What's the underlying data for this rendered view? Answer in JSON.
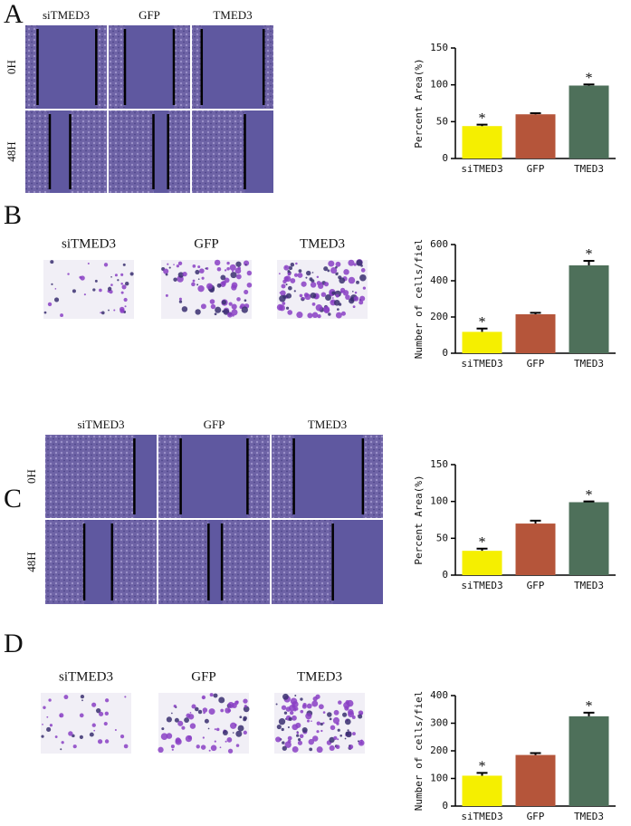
{
  "panels": [
    {
      "letter": "A",
      "columns": [
        "siTMED3",
        "GFP",
        "TMED3"
      ],
      "rows": [
        "0H",
        "48H"
      ]
    },
    {
      "letter": "B",
      "columns": [
        "siTMED3",
        "GFP",
        "TMED3"
      ]
    },
    {
      "letter": "C",
      "columns": [
        "siTMED3",
        "GFP",
        "TMED3"
      ],
      "rows": [
        "0H",
        "48H"
      ]
    },
    {
      "letter": "D",
      "columns": [
        "siTMED3",
        "GFP",
        "TMED3"
      ]
    }
  ],
  "chart_data": [
    {
      "type": "bar",
      "ylabel": "Percent Area(%)",
      "categories": [
        "siTMED3",
        "GFP",
        "TMED3"
      ],
      "values": [
        44,
        60,
        99
      ],
      "errors": [
        2,
        1.5,
        1.5
      ],
      "colors": [
        "#f5ef00",
        "#b5553a",
        "#4e705a"
      ],
      "significance": [
        "*",
        null,
        "*"
      ],
      "ylim": [
        0,
        150
      ],
      "yticks": [
        0,
        50,
        100,
        150
      ]
    },
    {
      "type": "bar",
      "ylabel": "Number of cells/fiel",
      "categories": [
        "siTMED3",
        "GFP",
        "TMED3"
      ],
      "values": [
        118,
        215,
        485
      ],
      "errors": [
        18,
        8,
        25
      ],
      "colors": [
        "#f5ef00",
        "#b5553a",
        "#4e705a"
      ],
      "significance": [
        "*",
        null,
        "*"
      ],
      "ylim": [
        0,
        600
      ],
      "yticks": [
        0,
        200,
        400,
        600
      ]
    },
    {
      "type": "bar",
      "ylabel": "Percent Area(%)",
      "categories": [
        "siTMED3",
        "GFP",
        "TMED3"
      ],
      "values": [
        33,
        70,
        99
      ],
      "errors": [
        3,
        4,
        1
      ],
      "colors": [
        "#f5ef00",
        "#b5553a",
        "#4e705a"
      ],
      "significance": [
        "*",
        null,
        "*"
      ],
      "ylim": [
        0,
        150
      ],
      "yticks": [
        0,
        50,
        100,
        150
      ]
    },
    {
      "type": "bar",
      "ylabel": "Number of cells/fiel",
      "categories": [
        "siTMED3",
        "GFP",
        "TMED3"
      ],
      "values": [
        110,
        185,
        325
      ],
      "errors": [
        10,
        7,
        13
      ],
      "colors": [
        "#f5ef00",
        "#b5553a",
        "#4e705a"
      ],
      "significance": [
        "*",
        null,
        "*"
      ],
      "ylim": [
        0,
        400
      ],
      "yticks": [
        0,
        100,
        200,
        300,
        400
      ]
    }
  ]
}
